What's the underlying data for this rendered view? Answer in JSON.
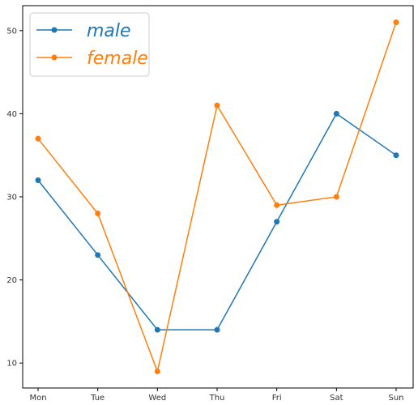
{
  "chart_data": {
    "type": "line",
    "categories": [
      "Mon",
      "Tue",
      "Wed",
      "Thu",
      "Fri",
      "Sat",
      "Sun"
    ],
    "series": [
      {
        "name": "male",
        "values": [
          32,
          23,
          14,
          14,
          27,
          40,
          35
        ],
        "color": "#1f77b4"
      },
      {
        "name": "female",
        "values": [
          37,
          28,
          9,
          41,
          29,
          30,
          51
        ],
        "color": "#ff7f0e"
      }
    ],
    "title": "",
    "xlabel": "",
    "ylabel": "",
    "ylim": [
      7,
      53
    ],
    "yticks": [
      10,
      20,
      30,
      40,
      50
    ],
    "grid": false,
    "legend": "top-left",
    "marker": "circle"
  }
}
